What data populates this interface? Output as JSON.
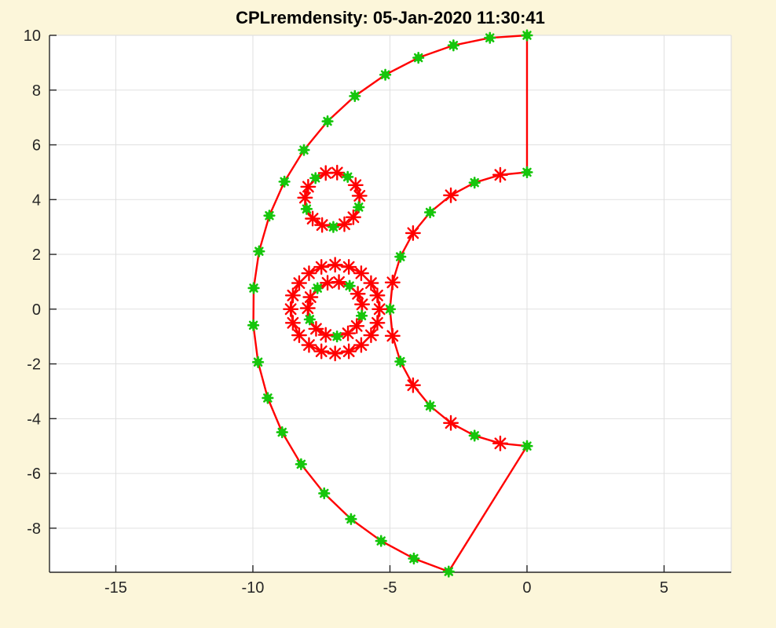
{
  "figure": {
    "title": "CPLremdensity: 05-Jan-2020 11:30:41",
    "background_color": "#FCF6DA",
    "plot_background_color": "#FFFFFF"
  },
  "chart_data": {
    "type": "scatter",
    "title": "CPLremdensity: 05-Jan-2020 11:30:41",
    "xlabel": "",
    "ylabel": "",
    "xlim": [
      -17.42,
      7.45
    ],
    "ylim": [
      -9.61,
      10
    ],
    "xticks": [
      -15,
      -10,
      -5,
      0,
      5
    ],
    "yticks": [
      -8,
      -6,
      -4,
      -2,
      0,
      2,
      4,
      6,
      8,
      10
    ],
    "grid": true,
    "legend": null,
    "colors": {
      "line": "#FF0000",
      "green_marker": "#16C60C",
      "red_marker": "#FF0000",
      "axis": "#262626",
      "grid": "#E0E0E0",
      "tick_label": "#262626"
    },
    "boundaries": [
      {
        "name": "outer-arc",
        "shape": "arc",
        "center": [
          0,
          0
        ],
        "radius": 10,
        "angle_start_deg": 90,
        "angle_end_deg": 253.4,
        "n_points": 22,
        "marker_pattern": [
          "green"
        ]
      },
      {
        "name": "inner-arc",
        "shape": "arc",
        "center": [
          0,
          0
        ],
        "radius": 5,
        "angle_start_deg": 90,
        "angle_end_deg": 270,
        "n_points": 17,
        "marker_pattern": [
          "green",
          "red"
        ]
      },
      {
        "name": "top-edge",
        "shape": "segment",
        "from": [
          0,
          10
        ],
        "to": [
          0,
          5
        ]
      },
      {
        "name": "bottom-edge",
        "shape": "segment",
        "from": [
          0,
          -5
        ],
        "to": [
          -2.857,
          -9.583
        ]
      },
      {
        "name": "upper-hole-circle",
        "shape": "circle",
        "center": [
          -7.1,
          4
        ],
        "radius": 1.0,
        "angle_start_deg": 128,
        "angle_step_deg": -24,
        "n_points": 15,
        "marker_pattern": [
          "green",
          "red",
          "red"
        ]
      },
      {
        "name": "lower-hole-inner-circle",
        "shape": "circle",
        "center": [
          -7,
          0
        ],
        "radius": 1.0,
        "angle_start_deg": 130,
        "angle_step_deg": -24,
        "n_points": 15,
        "marker_pattern": [
          "green",
          "red",
          "red"
        ]
      },
      {
        "name": "lower-hole-outer-circle",
        "shape": "circle",
        "center": [
          -7,
          0
        ],
        "radius": 1.62,
        "angle_start_deg": 90,
        "angle_step_deg": -18,
        "n_points": 20,
        "marker_pattern": [
          "red"
        ]
      }
    ]
  }
}
